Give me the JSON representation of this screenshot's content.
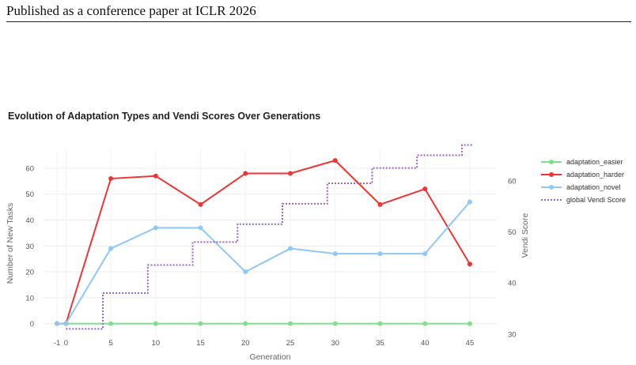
{
  "header": {
    "text": "Published as a conference paper at ICLR 2026"
  },
  "chart_data": {
    "type": "line",
    "title": "Evolution of Adaptation Types and Vendi Scores Over Generations",
    "xlabel": "Generation",
    "ylabel": "Number of New Tasks",
    "y2label": "Vendi Score",
    "x_ticks": [
      "-1",
      "0",
      "5",
      "10",
      "15",
      "20",
      "25",
      "30",
      "35",
      "40",
      "45"
    ],
    "x_tick_values": [
      -1,
      0,
      5,
      10,
      15,
      20,
      25,
      30,
      35,
      40,
      45
    ],
    "y_ticks": [
      "0",
      "10",
      "20",
      "30",
      "40",
      "50",
      "60"
    ],
    "y2_ticks": [
      "30",
      "40",
      "50",
      "60"
    ],
    "xlim": [
      -2.5,
      48
    ],
    "ylim": [
      -5,
      67
    ],
    "y2lim": [
      29.5,
      66
    ],
    "grid": true,
    "legend_position": "right",
    "series": [
      {
        "name": "adaptation_easier",
        "color": "#7ee08a",
        "style": "solid-markers",
        "axis": "left",
        "x": [
          -1,
          0,
          5,
          10,
          15,
          20,
          25,
          30,
          35,
          40,
          45
        ],
        "values": [
          0,
          0,
          0,
          0,
          0,
          0,
          0,
          0,
          0,
          0,
          0
        ]
      },
      {
        "name": "adaptation_harder",
        "color": "#f03434",
        "style": "solid-markers",
        "axis": "left",
        "x": [
          -1,
          0,
          5,
          10,
          15,
          20,
          25,
          30,
          35,
          40,
          45
        ],
        "values": [
          0,
          0,
          56,
          57,
          46,
          58,
          58,
          63,
          46,
          52,
          23
        ]
      },
      {
        "name": "adaptation_novel",
        "color": "#8ec8f6",
        "style": "solid-markers",
        "axis": "left",
        "x": [
          -1,
          0,
          5,
          10,
          15,
          20,
          25,
          30,
          35,
          40,
          45
        ],
        "values": [
          0,
          0,
          29,
          37,
          37,
          20,
          29,
          27,
          27,
          27,
          47
        ]
      },
      {
        "name": "global Vendi Score",
        "color": "#9a63c4",
        "style": "dotted-step",
        "axis": "right",
        "x": [
          0,
          5,
          10,
          15,
          20,
          25,
          30,
          35,
          40,
          45
        ],
        "values": [
          31,
          38,
          43.5,
          48,
          51.5,
          55.5,
          59.5,
          62.5,
          65,
          67
        ]
      }
    ]
  }
}
